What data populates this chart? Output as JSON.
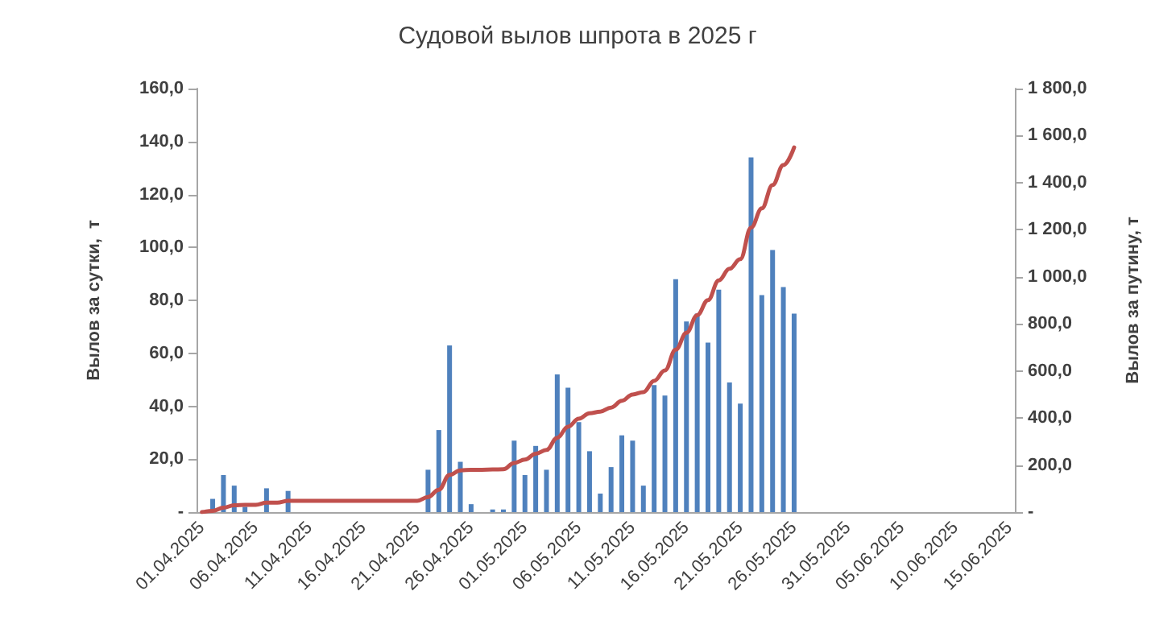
{
  "chart_data": {
    "type": "bar",
    "title": "Судовой вылов шпрота в 2025 г",
    "ylabel": "Вылов за сутки,  т",
    "y2label": "Вылов за путину, т",
    "categories": [
      "01.04.2025",
      null,
      null,
      null,
      null,
      "06.04.2025",
      null,
      null,
      null,
      null,
      "11.04.2025",
      null,
      null,
      null,
      null,
      "16.04.2025",
      null,
      null,
      null,
      null,
      "21.04.2025",
      null,
      null,
      null,
      null,
      "26.04.2025",
      null,
      null,
      null,
      null,
      "01.05.2025",
      null,
      null,
      null,
      null,
      "06.05.2025",
      null,
      null,
      null,
      null,
      "11.05.2025",
      null,
      null,
      null,
      null,
      "16.05.2025",
      null,
      null,
      null,
      null,
      "21.05.2025",
      null,
      null,
      null,
      null,
      "26.05.2025",
      null,
      null,
      null,
      null,
      "31.05.2025",
      null,
      null,
      null,
      null,
      "05.06.2025",
      null,
      null,
      null,
      null,
      "10.06.2025",
      null,
      null,
      null,
      null,
      "15.06.2025"
    ],
    "series": [
      {
        "color": "#4f81bd",
        "values": [
          null,
          5,
          14,
          10,
          2,
          null,
          9,
          null,
          8,
          null,
          null,
          null,
          null,
          null,
          null,
          null,
          null,
          null,
          null,
          null,
          null,
          16,
          31,
          63,
          19,
          3,
          null,
          1,
          1,
          27,
          14,
          25,
          16,
          52,
          47,
          34,
          23,
          7,
          17,
          29,
          27,
          10,
          48,
          44,
          88,
          72,
          75,
          64,
          84,
          49,
          41,
          134,
          82,
          99,
          85,
          75,
          null,
          null,
          null,
          null,
          null,
          null,
          null,
          null,
          null,
          null,
          null,
          null,
          null,
          null,
          null,
          null,
          null,
          null,
          null,
          null
        ]
      },
      {
        "type": "line",
        "axis": "y2",
        "color": "#c0504d",
        "values": [
          0,
          5,
          19,
          29,
          31,
          31,
          40,
          40,
          48,
          48,
          48,
          48,
          48,
          48,
          48,
          48,
          48,
          48,
          48,
          48,
          48,
          64,
          95,
          158,
          177,
          180,
          180,
          181,
          182,
          209,
          223,
          248,
          264,
          316,
          363,
          397,
          420,
          427,
          444,
          473,
          500,
          510,
          558,
          602,
          690,
          762,
          837,
          901,
          985,
          1034,
          1075,
          1209,
          1291,
          1390,
          1475,
          1550,
          null,
          null,
          null,
          null,
          null,
          null,
          null,
          null,
          null,
          null,
          null,
          null,
          null,
          null,
          null,
          null,
          null,
          null,
          null,
          null
        ]
      }
    ],
    "ylim": [
      0,
      160
    ],
    "yticks": [
      {
        "value": 0,
        "label": "-"
      },
      {
        "value": 20,
        "label": "20,0"
      },
      {
        "value": 40,
        "label": "40,0"
      },
      {
        "value": 60,
        "label": "60,0"
      },
      {
        "value": 80,
        "label": "80,0"
      },
      {
        "value": 100,
        "label": "100,0"
      },
      {
        "value": 120,
        "label": "120,0"
      },
      {
        "value": 140,
        "label": "140,0"
      },
      {
        "value": 160,
        "label": "160,0"
      }
    ],
    "y2lim": [
      0,
      1800
    ],
    "y2ticks": [
      {
        "value": 0,
        "label": "-"
      },
      {
        "value": 200,
        "label": "200,0"
      },
      {
        "value": 400,
        "label": "400,0"
      },
      {
        "value": 600,
        "label": "600,0"
      },
      {
        "value": 800,
        "label": "800,0"
      },
      {
        "value": 1000,
        "label": "1 000,0"
      },
      {
        "value": 1200,
        "label": "1 200,0"
      },
      {
        "value": 1400,
        "label": "1 400,0"
      },
      {
        "value": 1600,
        "label": "1 600,0"
      },
      {
        "value": 1800,
        "label": "1 800,0"
      }
    ],
    "grid": false,
    "marker": "none"
  }
}
